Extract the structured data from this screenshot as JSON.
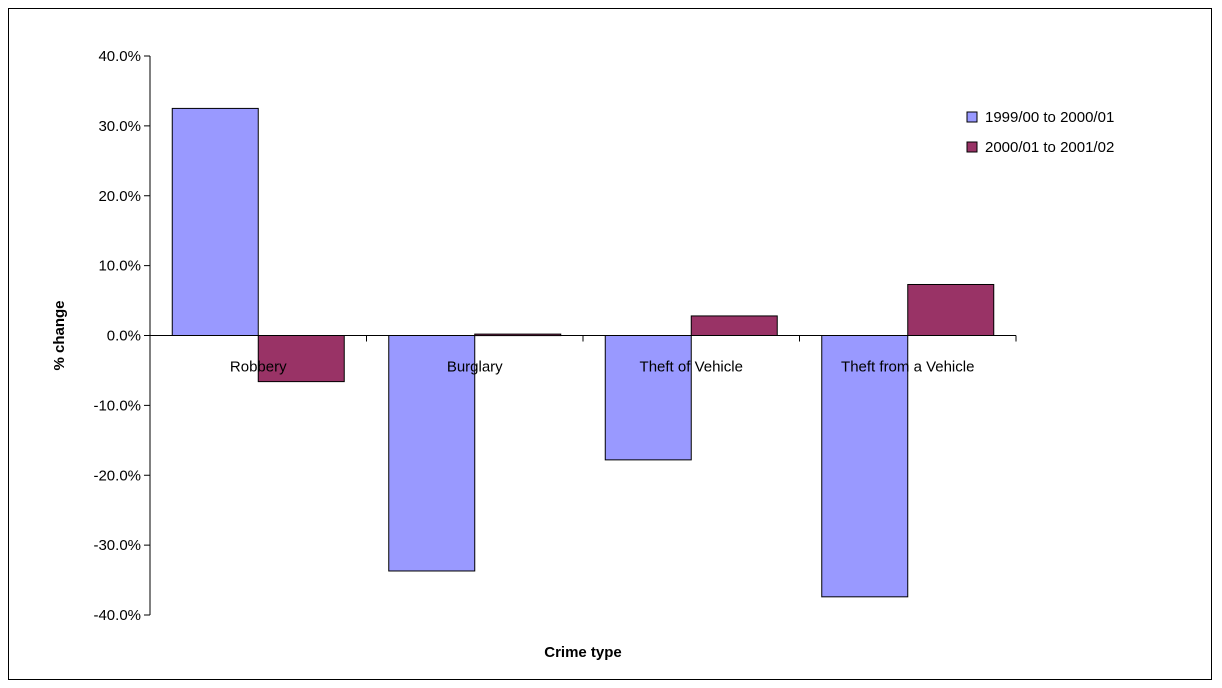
{
  "chart_data": {
    "type": "bar",
    "title": "",
    "xlabel": "Crime type",
    "ylabel": "% change",
    "categories": [
      "Robbery",
      "Burglary",
      "Theft of Vehicle",
      "Theft from a Vehicle"
    ],
    "series": [
      {
        "name": "1999/00 to 2000/01",
        "color": "#9999ff",
        "values": [
          32.5,
          -33.7,
          -17.8,
          -37.4
        ]
      },
      {
        "name": "2000/01 to 2001/02",
        "color": "#993366",
        "values": [
          -6.6,
          0.2,
          2.8,
          7.3
        ]
      }
    ],
    "ylim": [
      -40,
      40
    ],
    "yticks": [
      40,
      30,
      20,
      10,
      0,
      -10,
      -20,
      -30,
      -40
    ],
    "ytick_labels": [
      "40.0%",
      "30.0%",
      "20.0%",
      "10.0%",
      "0.0%",
      "-10.0%",
      "-20.0%",
      "-30.0%",
      "-40.0%"
    ],
    "grid": false,
    "legend_position": "right"
  }
}
